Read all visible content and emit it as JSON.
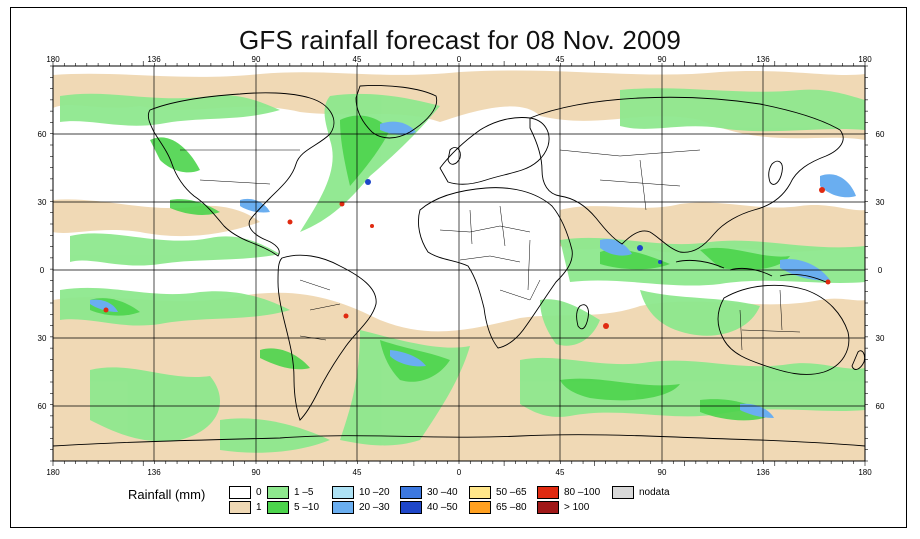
{
  "title": "GFS rainfall forecast for 08 Nov. 2009",
  "top_ticks": [
    "180",
    "136",
    "90",
    "45",
    "0",
    "45",
    "90",
    "136",
    "180"
  ],
  "bottom_ticks": [
    "180",
    "136",
    "90",
    "45",
    "0",
    "45",
    "90",
    "136",
    "180"
  ],
  "left_ticks": [
    "60",
    "30",
    "0",
    "30",
    "60"
  ],
  "right_ticks": [
    "60",
    "30",
    "0",
    "30",
    "60"
  ],
  "legend": {
    "title": "Rainfall (mm)",
    "items": [
      {
        "label": "0",
        "color": "#ffffff"
      },
      {
        "label": "1",
        "color": "#f0d9b5"
      },
      {
        "label": "1 –5",
        "color": "#8ee88e"
      },
      {
        "label": "5 –10",
        "color": "#4cd44c"
      },
      {
        "label": "10 –20",
        "color": "#aee2f5"
      },
      {
        "label": "20 –30",
        "color": "#6aaef0"
      },
      {
        "label": "30 –40",
        "color": "#3c78e0"
      },
      {
        "label": "40 –50",
        "color": "#1e46c8"
      },
      {
        "label": "50 –65",
        "color": "#ffe68a"
      },
      {
        "label": "65 –80",
        "color": "#ffa020"
      },
      {
        "label": "80 –100",
        "color": "#e02a10"
      },
      {
        "label": "> 100",
        "color": "#a01818"
      },
      {
        "label": "nodata",
        "color": "#d8d8d8"
      }
    ]
  },
  "colors": {
    "ocean_beige": "#f0d9b5",
    "rain_light": "#8ee88e",
    "rain_green": "#4cd44c",
    "rain_blue": "#6aaef0",
    "rain_dark_blue": "#1e46c8",
    "rain_red": "#e02a10"
  }
}
